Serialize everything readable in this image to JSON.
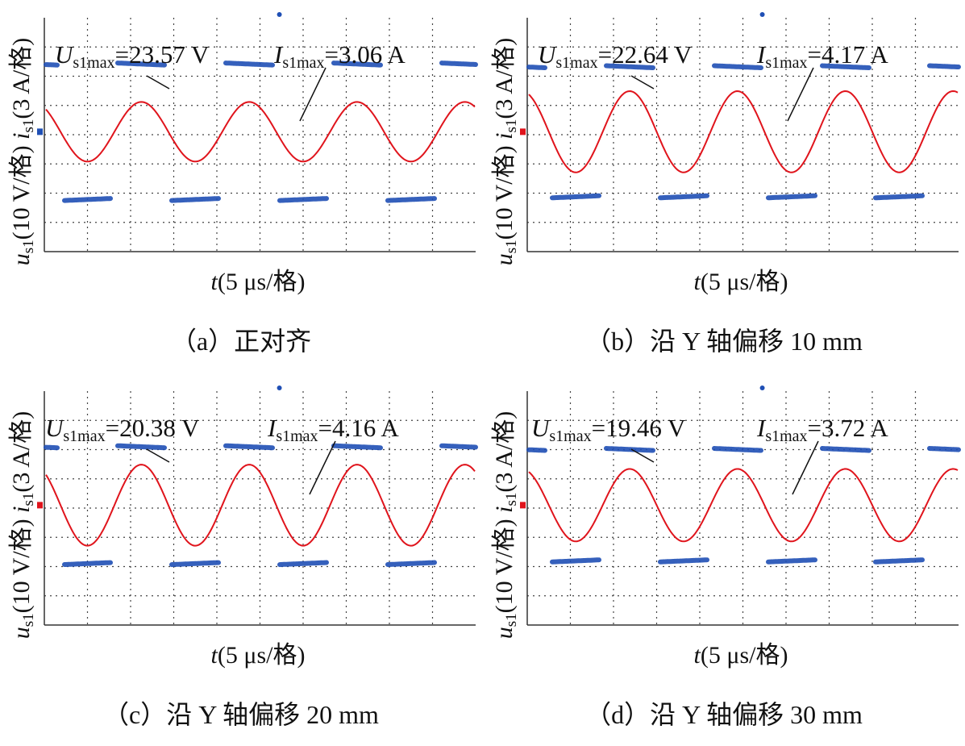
{
  "panels": [
    {
      "caption_text": "（a）正对齐",
      "annotations": {
        "u_sym": "U",
        "u_sub": "s1max",
        "u_val": "=23.57 V",
        "i_sym": "I",
        "i_sub": "s1max",
        "i_val": "=3.06 A"
      }
    },
    {
      "caption_text": "（b）沿 Y 轴偏移 10 mm",
      "annotations": {
        "u_sym": "U",
        "u_sub": "s1max",
        "u_val": "=22.64 V",
        "i_sym": "I",
        "i_sub": "s1max",
        "i_val": "=4.17 A"
      }
    },
    {
      "caption_text": "（c）沿 Y 轴偏移 20 mm",
      "annotations": {
        "u_sym": "U",
        "u_sub": "s1max",
        "u_val": "=20.38 V",
        "i_sym": "I",
        "i_sub": "s1max",
        "i_val": "=4.16 A"
      }
    },
    {
      "caption_text": "（d）沿 Y 轴偏移 30 mm",
      "annotations": {
        "u_sym": "U",
        "u_sub": "s1max",
        "u_val": "=19.46 V",
        "i_sym": "I",
        "i_sub": "s1max",
        "i_val": "=3.72 A"
      }
    }
  ],
  "axis": {
    "x_sym": "t",
    "x_rest": "(5 μs/格)",
    "y_u_sym": "u",
    "y_u_sub": "s1",
    "y_u_rest": "(10 V/格)",
    "y_i_sym": "i",
    "y_i_sub": "s1",
    "y_i_rest": "(3 A/格)"
  },
  "colors": {
    "voltage": "#1f4fb5",
    "current": "#e0141c",
    "grid": "#444444"
  },
  "chart_data": [
    {
      "type": "line",
      "x_unit": "μs",
      "x_per_div": 5,
      "x_divisions": 10,
      "y_divisions": 8,
      "series": [
        {
          "name": "u_s1",
          "shape": "square",
          "per_div": 10,
          "unit": "V",
          "amplitude": 23.57,
          "period_div": 2.5
        },
        {
          "name": "i_s1",
          "shape": "sine",
          "per_div": 3,
          "unit": "A",
          "amplitude": 3.06,
          "period_div": 2.5
        }
      ]
    },
    {
      "type": "line",
      "x_unit": "μs",
      "x_per_div": 5,
      "x_divisions": 10,
      "y_divisions": 8,
      "series": [
        {
          "name": "u_s1",
          "shape": "square",
          "per_div": 10,
          "unit": "V",
          "amplitude": 22.64,
          "period_div": 2.5
        },
        {
          "name": "i_s1",
          "shape": "sine",
          "per_div": 3,
          "unit": "A",
          "amplitude": 4.17,
          "period_div": 2.5
        }
      ]
    },
    {
      "type": "line",
      "x_unit": "μs",
      "x_per_div": 5,
      "x_divisions": 10,
      "y_divisions": 8,
      "series": [
        {
          "name": "u_s1",
          "shape": "square",
          "per_div": 10,
          "unit": "V",
          "amplitude": 20.38,
          "period_div": 2.5
        },
        {
          "name": "i_s1",
          "shape": "sine",
          "per_div": 3,
          "unit": "A",
          "amplitude": 4.16,
          "period_div": 2.5
        }
      ]
    },
    {
      "type": "line",
      "x_unit": "μs",
      "x_per_div": 5,
      "x_divisions": 10,
      "y_divisions": 8,
      "series": [
        {
          "name": "u_s1",
          "shape": "square",
          "per_div": 10,
          "unit": "V",
          "amplitude": 19.46,
          "period_div": 2.5
        },
        {
          "name": "i_s1",
          "shape": "sine",
          "per_div": 3,
          "unit": "A",
          "amplitude": 3.72,
          "period_div": 2.5
        }
      ]
    }
  ]
}
